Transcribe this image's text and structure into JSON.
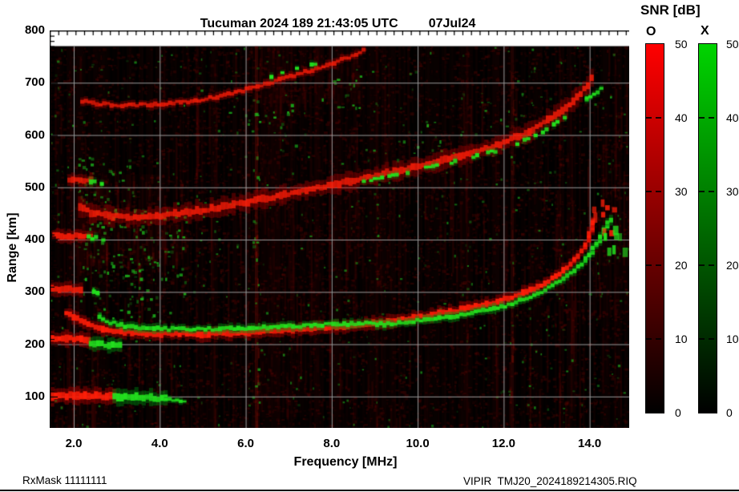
{
  "title": {
    "main": "Tucuman 2024 189 21:43:05 UTC",
    "date": "07Jul24"
  },
  "footer": {
    "left": "RxMask 11111111",
    "right": "VIPIR  TMJ20_2024189214305.RIQ"
  },
  "colorbar": {
    "title": "SNR [dB]",
    "tick_labels": [
      "50",
      "40",
      "30",
      "20",
      "10",
      "0"
    ],
    "bars": [
      {
        "label": "O",
        "top_color": "#ff0000",
        "bottom_color": "#000000"
      },
      {
        "label": "X",
        "top_color": "#00d400",
        "bottom_color": "#000000"
      }
    ]
  },
  "chart_data": {
    "type": "heatmap",
    "title": "Tucuman 2024 189 21:43:05 UTC 07Jul24",
    "xlabel": "Frequency [MHz]",
    "ylabel": "Range [km]",
    "xlim": [
      1.44,
      14.92
    ],
    "ylim": [
      40,
      800
    ],
    "data_top_km": 770,
    "x_ticks": [
      2.0,
      4.0,
      6.0,
      8.0,
      10.0,
      12.0,
      14.0
    ],
    "x_tick_labels": [
      "2.0",
      "4.0",
      "6.0",
      "8.0",
      "10.0",
      "12.0",
      "14.0"
    ],
    "x_minor_step": 0.2,
    "y_ticks": [
      800,
      700,
      600,
      500,
      400,
      300,
      200,
      100
    ],
    "y_tick_labels": [
      "800",
      "700",
      "600",
      "500",
      "400",
      "300",
      "200",
      "100"
    ],
    "y_minor_step": 10,
    "grid": {
      "color": "#9a9a9a",
      "x_at": [
        2,
        4,
        6,
        8,
        10,
        12,
        14
      ],
      "y_at": [
        100,
        200,
        300,
        400,
        500,
        600,
        700
      ]
    },
    "snr_scale": {
      "min": 0,
      "max": 50,
      "o_color": "#ff0000",
      "x_color": "#00d400"
    },
    "background": "#000000",
    "colors": {
      "o_core": "#ff1e08",
      "o_halo": "#bb0000",
      "x_core": "#23e11e",
      "x_halo": "#009610"
    },
    "traces": [
      {
        "name": "F1-O",
        "mode": "O",
        "style": "band",
        "w": 6.5,
        "pts": [
          [
            1.78,
            258
          ],
          [
            2.0,
            250
          ],
          [
            2.3,
            238
          ],
          [
            2.7,
            228
          ],
          [
            3.2,
            222
          ],
          [
            4.0,
            219
          ],
          [
            5.0,
            220
          ],
          [
            6.0,
            223
          ],
          [
            7.0,
            227
          ],
          [
            8.0,
            233
          ],
          [
            9.0,
            241
          ],
          [
            10.0,
            252
          ],
          [
            10.8,
            263
          ],
          [
            11.5,
            275
          ],
          [
            12.0,
            286
          ],
          [
            12.5,
            301
          ],
          [
            12.9,
            316
          ],
          [
            13.3,
            337
          ],
          [
            13.6,
            360
          ],
          [
            13.85,
            385
          ],
          [
            14.0,
            412
          ],
          [
            14.1,
            440
          ]
        ]
      },
      {
        "name": "F1-X",
        "mode": "X",
        "style": "band",
        "w": 4.5,
        "pts": [
          [
            2.55,
            252
          ],
          [
            2.8,
            242
          ],
          [
            3.1,
            235
          ],
          [
            3.5,
            231
          ],
          [
            4.2,
            229
          ],
          [
            5.0,
            229
          ],
          [
            6.0,
            231
          ],
          [
            7.0,
            234
          ],
          [
            8.0,
            238
          ],
          [
            8.6,
            240
          ],
          [
            9.3,
            238
          ],
          [
            10.0,
            245
          ],
          [
            10.8,
            254
          ],
          [
            11.5,
            264
          ],
          [
            12.0,
            274
          ],
          [
            12.5,
            288
          ],
          [
            12.9,
            302
          ],
          [
            13.3,
            322
          ],
          [
            13.7,
            348
          ],
          [
            14.0,
            374
          ],
          [
            14.2,
            400
          ],
          [
            14.35,
            424
          ],
          [
            14.5,
            442
          ]
        ]
      },
      {
        "name": "F2-O",
        "mode": "O",
        "style": "band",
        "w": 7.5,
        "alpha": 0.85,
        "halo": 2.8,
        "pts": [
          [
            2.1,
            464
          ],
          [
            2.35,
            452
          ],
          [
            2.7,
            446
          ],
          [
            3.3,
            443
          ],
          [
            4.0,
            446
          ],
          [
            5.0,
            457
          ],
          [
            6.0,
            472
          ],
          [
            7.0,
            488
          ],
          [
            8.0,
            505
          ],
          [
            9.0,
            523
          ],
          [
            10.0,
            541
          ],
          [
            10.8,
            557
          ],
          [
            11.5,
            572
          ],
          [
            12.0,
            587
          ],
          [
            12.5,
            605
          ],
          [
            12.9,
            623
          ],
          [
            13.3,
            646
          ],
          [
            13.7,
            674
          ],
          [
            13.95,
            700
          ],
          [
            14.05,
            716
          ]
        ]
      },
      {
        "name": "F2-X",
        "mode": "X",
        "style": "dash",
        "w": 4,
        "pts": [
          [
            8.7,
            512
          ],
          [
            9.3,
            523
          ],
          [
            10.0,
            534
          ],
          [
            10.7,
            547
          ],
          [
            11.3,
            559
          ],
          [
            11.9,
            573
          ],
          [
            12.4,
            589
          ],
          [
            12.9,
            608
          ],
          [
            13.3,
            628
          ],
          [
            13.7,
            652
          ],
          [
            14.05,
            678
          ],
          [
            14.3,
            694
          ]
        ]
      },
      {
        "name": "F3-O",
        "mode": "O",
        "style": "band",
        "w": 4.5,
        "alpha": 0.8,
        "pts": [
          [
            2.15,
            664
          ],
          [
            2.6,
            659
          ],
          [
            3.2,
            657
          ],
          [
            4.0,
            659
          ],
          [
            4.8,
            666
          ],
          [
            5.5,
            677
          ],
          [
            6.1,
            690
          ],
          [
            6.6,
            702
          ],
          [
            7.1,
            714
          ],
          [
            7.6,
            727
          ],
          [
            8.1,
            741
          ],
          [
            8.5,
            754
          ],
          [
            8.75,
            763
          ]
        ]
      },
      {
        "name": "F3-X",
        "mode": "X",
        "style": "dash",
        "w": 4,
        "pts": [
          [
            6.55,
            712
          ],
          [
            6.9,
            720
          ],
          [
            7.25,
            728
          ],
          [
            7.6,
            735
          ]
        ]
      },
      {
        "name": "E-100-O",
        "mode": "O",
        "style": "band",
        "w": 8.5,
        "pts": [
          [
            1.45,
            101
          ],
          [
            2.0,
            102
          ],
          [
            2.5,
            101
          ],
          [
            2.95,
            99
          ]
        ]
      },
      {
        "name": "E-100-X",
        "mode": "X",
        "style": "band",
        "w": 8,
        "pts": [
          [
            2.9,
            100
          ],
          [
            3.3,
            99
          ],
          [
            3.8,
            97
          ],
          [
            4.15,
            95
          ]
        ]
      },
      {
        "name": "E-100-X-tail",
        "mode": "X",
        "style": "band",
        "w": 3,
        "pts": [
          [
            4.1,
            94
          ],
          [
            4.55,
            92
          ]
        ]
      },
      {
        "name": "E2-200-O",
        "mode": "O",
        "style": "band",
        "w": 7.5,
        "pts": [
          [
            1.45,
            212
          ],
          [
            1.9,
            211
          ],
          [
            2.35,
            209
          ]
        ]
      },
      {
        "name": "E2-200-X",
        "mode": "X",
        "style": "band",
        "w": 6.5,
        "pts": [
          [
            2.35,
            201
          ],
          [
            2.7,
            199
          ],
          [
            3.1,
            197
          ]
        ]
      },
      {
        "name": "E3-300-O",
        "mode": "O",
        "style": "band",
        "w": 6.5,
        "alpha": 0.9,
        "pts": [
          [
            1.44,
            306
          ],
          [
            1.8,
            305
          ],
          [
            2.2,
            304
          ]
        ]
      },
      {
        "name": "E3-300-X",
        "mode": "X",
        "style": "dash",
        "w": 5,
        "pts": [
          [
            2.25,
            302
          ],
          [
            2.65,
            299
          ]
        ]
      },
      {
        "name": "E4-400-O",
        "mode": "O",
        "style": "band",
        "w": 6.5,
        "alpha": 0.9,
        "pts": [
          [
            1.5,
            408
          ],
          [
            1.95,
            407
          ],
          [
            2.4,
            405
          ]
        ]
      },
      {
        "name": "E4-400-X",
        "mode": "X",
        "style": "dash",
        "w": 5,
        "pts": [
          [
            2.3,
            404
          ],
          [
            2.7,
            401
          ]
        ]
      },
      {
        "name": "E5-500-O",
        "mode": "O",
        "style": "band",
        "w": 6,
        "alpha": 0.8,
        "pts": [
          [
            1.85,
            516
          ],
          [
            2.1,
            515
          ],
          [
            2.4,
            513
          ]
        ]
      },
      {
        "name": "E5-500-X",
        "mode": "X",
        "style": "dash",
        "w": 5,
        "pts": [
          [
            2.35,
            511
          ],
          [
            2.65,
            508
          ]
        ]
      }
    ],
    "spread_scatter": [
      {
        "mode": "O",
        "f_range": [
          13.82,
          14.55
        ],
        "km_range": [
          400,
          485
        ],
        "count": 9
      },
      {
        "mode": "X",
        "f_range": [
          14.3,
          14.78
        ],
        "km_range": [
          350,
          432
        ],
        "count": 7
      }
    ],
    "rfi_stripes": [
      [
        6.25,
        2,
        0.25
      ],
      [
        9.05,
        1.5,
        0.1
      ],
      [
        11.15,
        1.5,
        0.09
      ],
      [
        12.2,
        2,
        0.2
      ],
      [
        13.3,
        1.5,
        0.1
      ],
      [
        4.85,
        1.5,
        0.07
      ],
      [
        14.6,
        1.5,
        0.09
      ]
    ],
    "red_haze": [
      [
        1.9,
        4.6,
        350,
        460,
        0.13
      ],
      [
        1.9,
        4.2,
        460,
        525,
        0.1
      ],
      [
        6.3,
        8.7,
        660,
        770,
        0.1
      ],
      [
        6.28,
        8.6,
        60,
        770,
        0.05
      ],
      [
        12.6,
        14.9,
        250,
        450,
        0.05
      ],
      [
        8.8,
        11.5,
        500,
        560,
        0.05
      ]
    ],
    "green_clouds": [
      [
        2.1,
        4.6,
        290,
        460,
        110
      ],
      [
        2.1,
        3.4,
        470,
        560,
        35
      ],
      [
        5.6,
        7.2,
        580,
        660,
        16
      ],
      [
        6.15,
        6.3,
        100,
        760,
        22
      ],
      [
        2.4,
        4.2,
        230,
        290,
        20
      ],
      [
        9.5,
        12.5,
        540,
        640,
        18
      ],
      [
        7.6,
        9.0,
        650,
        730,
        14
      ]
    ],
    "noise": {
      "seed": 12345,
      "red_dots": 9000,
      "green_dots": 550,
      "stripe_alpha": 0.11
    }
  }
}
